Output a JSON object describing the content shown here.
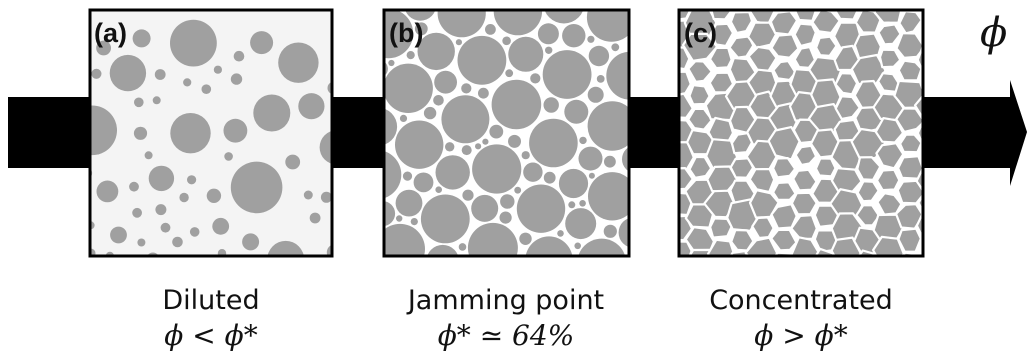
{
  "axis_symbol": "ϕ",
  "colors": {
    "arrow": "#000000",
    "particle": "#a0a0a0",
    "panel_background": "#f4f4f4",
    "packed_background": "#ffffff",
    "border": "#000000"
  },
  "panels": [
    {
      "id": "a",
      "label": "(a)",
      "title": "Diluted",
      "relation": "ϕ < ϕ*",
      "state": "dilute"
    },
    {
      "id": "b",
      "label": "(b)",
      "title": "Jamming point",
      "relation": "ϕ* ≃ 64%",
      "state": "jammed"
    },
    {
      "id": "c",
      "label": "(c)",
      "title": "Concentrated",
      "relation": "ϕ > ϕ*",
      "state": "compressed"
    }
  ]
}
